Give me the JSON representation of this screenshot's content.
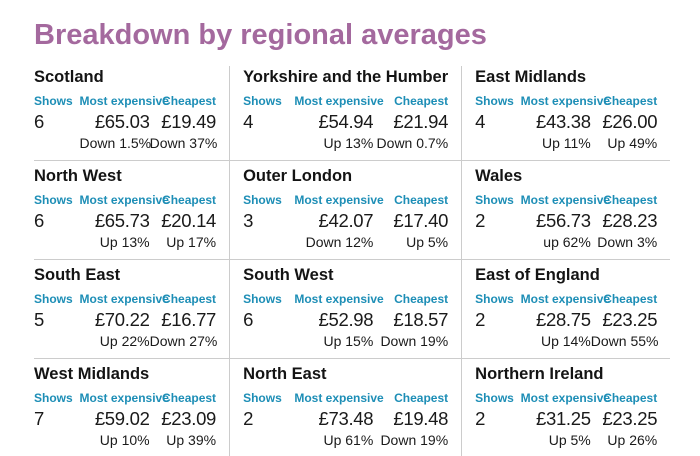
{
  "page": {
    "title": "Breakdown by regional averages",
    "title_color": "#a4699e",
    "accent_color": "#1d8eb6",
    "divider_color": "#cccccc"
  },
  "chart_data": {
    "type": "table",
    "title": "Breakdown by regional averages",
    "layout": "3-column by 4-row grid of region cards",
    "column_labels": {
      "shows": "Shows",
      "most_expensive": "Most expensive",
      "cheapest": "Cheapest"
    },
    "rows": [
      {
        "name": "Scotland",
        "shows": "6",
        "most_expensive": "£65.03",
        "most_expensive_change": "Down 1.5%",
        "cheapest": "£19.49",
        "cheapest_change": "Down 37%"
      },
      {
        "name": "Yorkshire and the Humber",
        "shows": "4",
        "most_expensive": "£54.94",
        "most_expensive_change": "Up 13%",
        "cheapest": "£21.94",
        "cheapest_change": "Down 0.7%"
      },
      {
        "name": "East Midlands",
        "shows": "4",
        "most_expensive": "£43.38",
        "most_expensive_change": "Up 11%",
        "cheapest": "£26.00",
        "cheapest_change": "Up 49%"
      },
      {
        "name": "North West",
        "shows": "6",
        "most_expensive": "£65.73",
        "most_expensive_change": "Up 13%",
        "cheapest": "£20.14",
        "cheapest_change": "Up 17%"
      },
      {
        "name": "Outer London",
        "shows": "3",
        "most_expensive": "£42.07",
        "most_expensive_change": "Down 12%",
        "cheapest": "£17.40",
        "cheapest_change": "Up 5%"
      },
      {
        "name": "Wales",
        "shows": "2",
        "most_expensive": "£56.73",
        "most_expensive_change": "up 62%",
        "cheapest": "£28.23",
        "cheapest_change": "Down 3%"
      },
      {
        "name": "South East",
        "shows": "5",
        "most_expensive": "£70.22",
        "most_expensive_change": "Up 22%",
        "cheapest": "£16.77",
        "cheapest_change": "Down 27%"
      },
      {
        "name": "South West",
        "shows": "6",
        "most_expensive": "£52.98",
        "most_expensive_change": "Up 15%",
        "cheapest": "£18.57",
        "cheapest_change": "Down 19%"
      },
      {
        "name": "East of England",
        "shows": "2",
        "most_expensive": "£28.75",
        "most_expensive_change": "Up 14%",
        "cheapest": "£23.25",
        "cheapest_change": "Down 55%"
      },
      {
        "name": "West Midlands",
        "shows": "7",
        "most_expensive": "£59.02",
        "most_expensive_change": "Up 10%",
        "cheapest": "£23.09",
        "cheapest_change": "Up 39%"
      },
      {
        "name": "North East",
        "shows": "2",
        "most_expensive": "£73.48",
        "most_expensive_change": "Up 61%",
        "cheapest": "£19.48",
        "cheapest_change": "Down 19%"
      },
      {
        "name": "Northern Ireland",
        "shows": "2",
        "most_expensive": "£31.25",
        "most_expensive_change": "Up 5%",
        "cheapest": "£23.25",
        "cheapest_change": "Up 26%"
      }
    ]
  }
}
